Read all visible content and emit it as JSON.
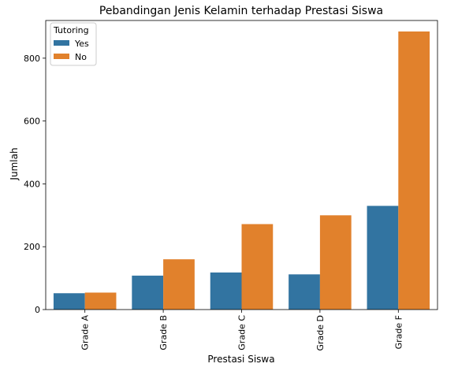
{
  "chart_data": {
    "type": "bar",
    "title": "Pebandingan Jenis Kelamin terhadap Prestasi Siswa",
    "xlabel": "Prestasi Siswa",
    "ylabel": "Jumlah",
    "categories": [
      "Grade A",
      "Grade B",
      "Grade C",
      "Grade D",
      "Grade F"
    ],
    "series": [
      {
        "name": "Yes",
        "color": "#3274a1",
        "values": [
          52,
          108,
          118,
          112,
          330
        ]
      },
      {
        "name": "No",
        "color": "#e1812c",
        "values": [
          54,
          160,
          272,
          300,
          885
        ]
      }
    ],
    "ylim": [
      0,
      920
    ],
    "yticks": [
      0,
      200,
      400,
      600,
      800
    ],
    "grid": false,
    "legend": {
      "title": "Tutoring",
      "placement": "top-left"
    }
  }
}
